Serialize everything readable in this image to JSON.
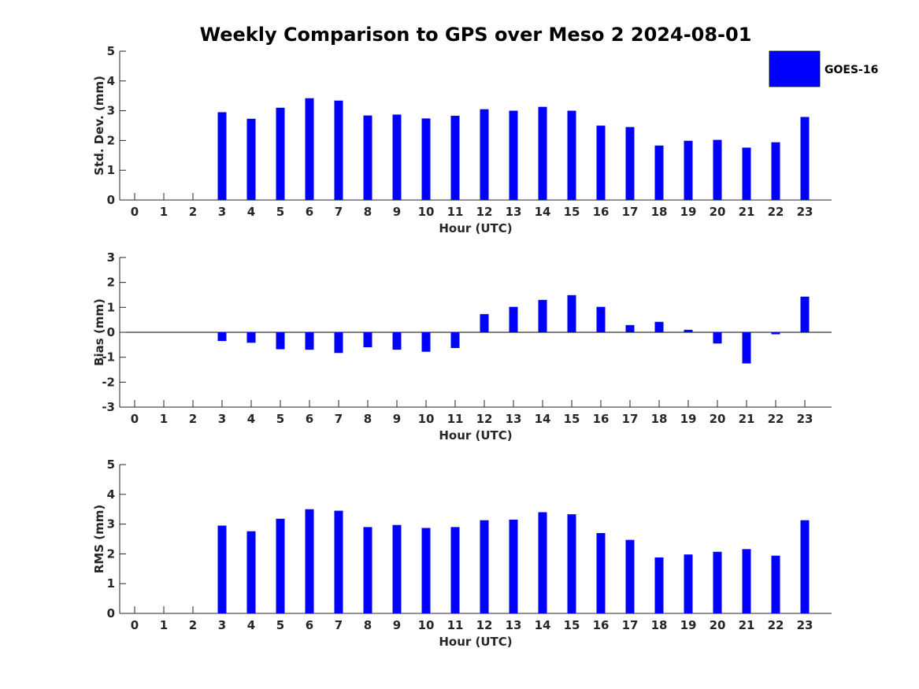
{
  "chart_data": {
    "type": "bar",
    "title": "Weekly Comparison to GPS over Meso 2 2024-08-01",
    "legend": {
      "label": "GOES-16",
      "color": "#0000ff",
      "placement": "top-right"
    },
    "categories": [
      "0",
      "1",
      "2",
      "3",
      "4",
      "5",
      "6",
      "7",
      "8",
      "9",
      "10",
      "11",
      "12",
      "13",
      "14",
      "15",
      "16",
      "17",
      "18",
      "19",
      "20",
      "21",
      "22",
      "23"
    ],
    "panels": [
      {
        "name": "std-dev",
        "ylabel": "Std. Dev. (mm)",
        "xlabel": "Hour (UTC)",
        "ylim": [
          0,
          5
        ],
        "yticks": [
          "0",
          "1",
          "2",
          "3",
          "4",
          "5"
        ],
        "values": [
          0,
          0,
          0,
          2.95,
          2.73,
          3.1,
          3.42,
          3.34,
          2.84,
          2.87,
          2.74,
          2.83,
          3.05,
          3.0,
          3.13,
          3.0,
          2.5,
          2.45,
          1.83,
          1.99,
          2.02,
          1.76,
          1.94,
          2.79
        ],
        "hasZeroLine": false
      },
      {
        "name": "bias",
        "ylabel": "Bias (mm)",
        "xlabel": "Hour (UTC)",
        "ylim": [
          -3,
          3
        ],
        "yticks": [
          "-3",
          "-2",
          "-1",
          "0",
          "1",
          "2",
          "3"
        ],
        "values": [
          0,
          0,
          0,
          -0.35,
          -0.42,
          -0.68,
          -0.7,
          -0.83,
          -0.6,
          -0.7,
          -0.78,
          -0.63,
          0.73,
          1.02,
          1.3,
          1.49,
          1.02,
          0.29,
          0.42,
          0.1,
          -0.45,
          -1.25,
          -0.08,
          1.43
        ],
        "hasZeroLine": true
      },
      {
        "name": "rms",
        "ylabel": "RMS (mm)",
        "xlabel": "Hour (UTC)",
        "ylim": [
          0,
          5
        ],
        "yticks": [
          "0",
          "1",
          "2",
          "3",
          "4",
          "5"
        ],
        "values": [
          0,
          0,
          0,
          2.95,
          2.76,
          3.18,
          3.5,
          3.45,
          2.9,
          2.97,
          2.87,
          2.9,
          3.13,
          3.15,
          3.4,
          3.33,
          2.7,
          2.47,
          1.88,
          1.98,
          2.07,
          2.16,
          1.94,
          3.13
        ],
        "hasZeroLine": false
      }
    ]
  }
}
